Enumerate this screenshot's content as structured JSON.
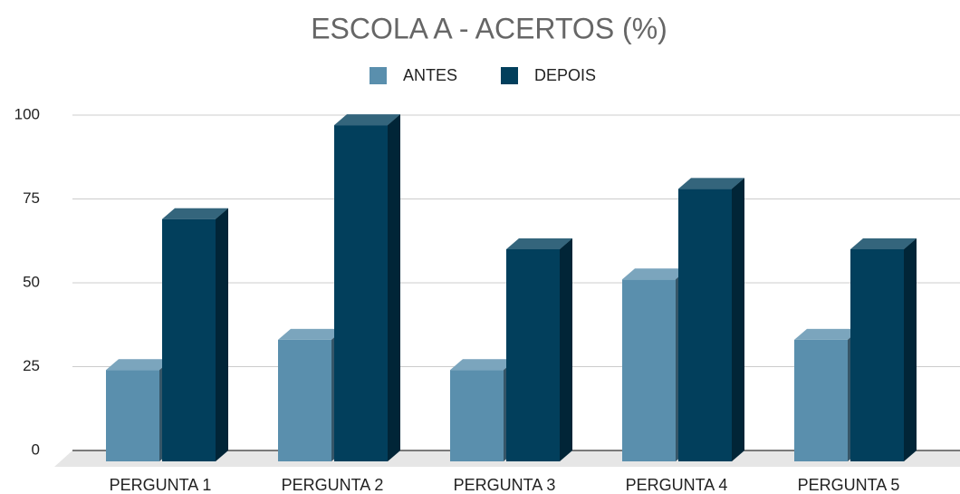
{
  "chart_data": {
    "type": "bar3d",
    "title": "ESCOLA A - ACERTOS (%)",
    "categories": [
      "PERGUNTA 1",
      "PERGUNTA 2",
      "PERGUNTA 3",
      "PERGUNTA 4",
      "PERGUNTA 5"
    ],
    "series": [
      {
        "name": "ANTES",
        "color": "#5a8fad",
        "values": [
          24,
          33,
          24,
          51,
          33
        ]
      },
      {
        "name": "DEPOIS",
        "color": "#023f5c",
        "values": [
          69,
          97,
          60,
          78,
          60
        ]
      }
    ],
    "ylim": [
      0,
      100
    ],
    "yticks": [
      0,
      25,
      50,
      75,
      100
    ],
    "grid": true,
    "legend": "top"
  }
}
